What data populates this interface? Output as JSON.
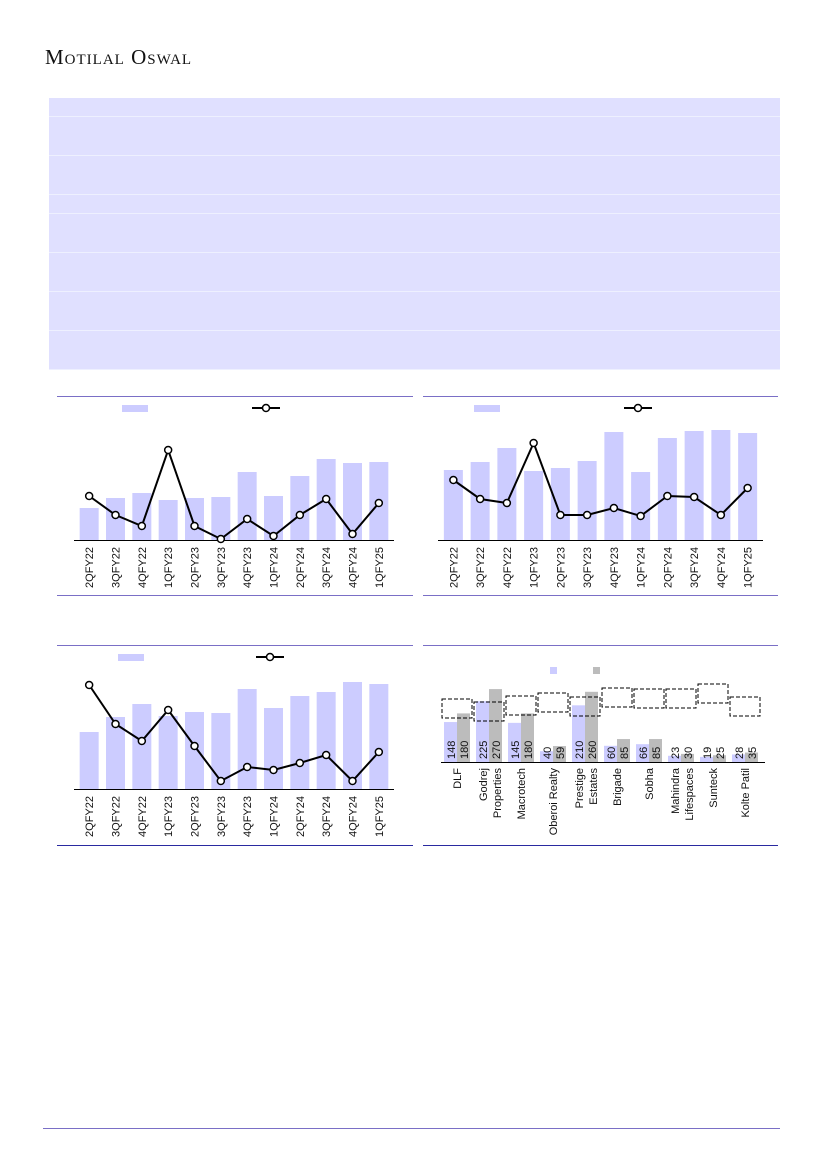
{
  "header": {
    "brand": "Motilal Oswal"
  },
  "colors": {
    "bar": "#ccccff",
    "bar_secondary": "#bcbcbc",
    "line": "#000000",
    "table_bg": "#e0e0ff",
    "rule": "#7a6fc6"
  },
  "chart_data": [
    {
      "type": "bar",
      "title": "",
      "categories": [
        "2QFY22",
        "3QFY22",
        "4QFY22",
        "1QFY23",
        "2QFY23",
        "3QFY23",
        "4QFY23",
        "1QFY24",
        "2QFY24",
        "3QFY24",
        "4QFY24",
        "1QFY25"
      ],
      "series": [
        {
          "name": "",
          "kind": "bar",
          "values": [
            32,
            42,
            47,
            40,
            42,
            43,
            68,
            44,
            64,
            81,
            77,
            78
          ]
        },
        {
          "name": "",
          "kind": "line",
          "values": [
            44,
            25,
            14,
            90,
            14,
            1,
            21,
            4,
            25,
            41,
            6,
            37
          ]
        }
      ],
      "note": "no axis scale shown; values are relative"
    },
    {
      "type": "bar",
      "title": "",
      "categories": [
        "2QFY22",
        "3QFY22",
        "4QFY22",
        "1QFY23",
        "2QFY23",
        "3QFY23",
        "4QFY23",
        "1QFY24",
        "2QFY24",
        "3QFY24",
        "4QFY24",
        "1QFY25"
      ],
      "series": [
        {
          "name": "",
          "kind": "bar",
          "values": [
            70,
            78,
            92,
            69,
            72,
            79,
            108,
            68,
            102,
            109,
            110,
            107
          ]
        },
        {
          "name": "",
          "kind": "line",
          "values": [
            60,
            41,
            37,
            97,
            25,
            25,
            32,
            24,
            44,
            43,
            25,
            52
          ]
        }
      ],
      "note": "no axis scale shown; values are relative"
    },
    {
      "type": "bar",
      "title": "",
      "categories": [
        "2QFY22",
        "3QFY22",
        "4QFY22",
        "1QFY23",
        "2QFY23",
        "3QFY23",
        "4QFY23",
        "1QFY24",
        "2QFY24",
        "3QFY24",
        "4QFY24",
        "1QFY25"
      ],
      "series": [
        {
          "name": "",
          "kind": "bar",
          "values": [
            57,
            72,
            85,
            73,
            77,
            76,
            100,
            81,
            93,
            97,
            107,
            105
          ]
        },
        {
          "name": "",
          "kind": "line",
          "values": [
            104,
            65,
            48,
            79,
            43,
            8,
            22,
            19,
            26,
            34,
            8,
            37
          ]
        }
      ],
      "note": "no axis scale shown; values are relative"
    },
    {
      "type": "bar",
      "title": "",
      "categories": [
        [
          "DLF"
        ],
        [
          "Godrej",
          "Properties"
        ],
        [
          "Macrotech"
        ],
        [
          "Oberoi Realty"
        ],
        [
          "Prestige",
          "Estates"
        ],
        [
          "Brigade"
        ],
        [
          "Sobha"
        ],
        [
          "Mahindra",
          "Lifespaces"
        ],
        [
          "Sunteck"
        ],
        [
          "Kolte Patil"
        ]
      ],
      "series": [
        {
          "name": "",
          "values": [
            148,
            225,
            145,
            40,
            210,
            60,
            66,
            23,
            19,
            28
          ]
        },
        {
          "name": "",
          "values": [
            180,
            270,
            180,
            59,
            260,
            85,
            85,
            30,
            25,
            35
          ]
        }
      ]
    }
  ]
}
